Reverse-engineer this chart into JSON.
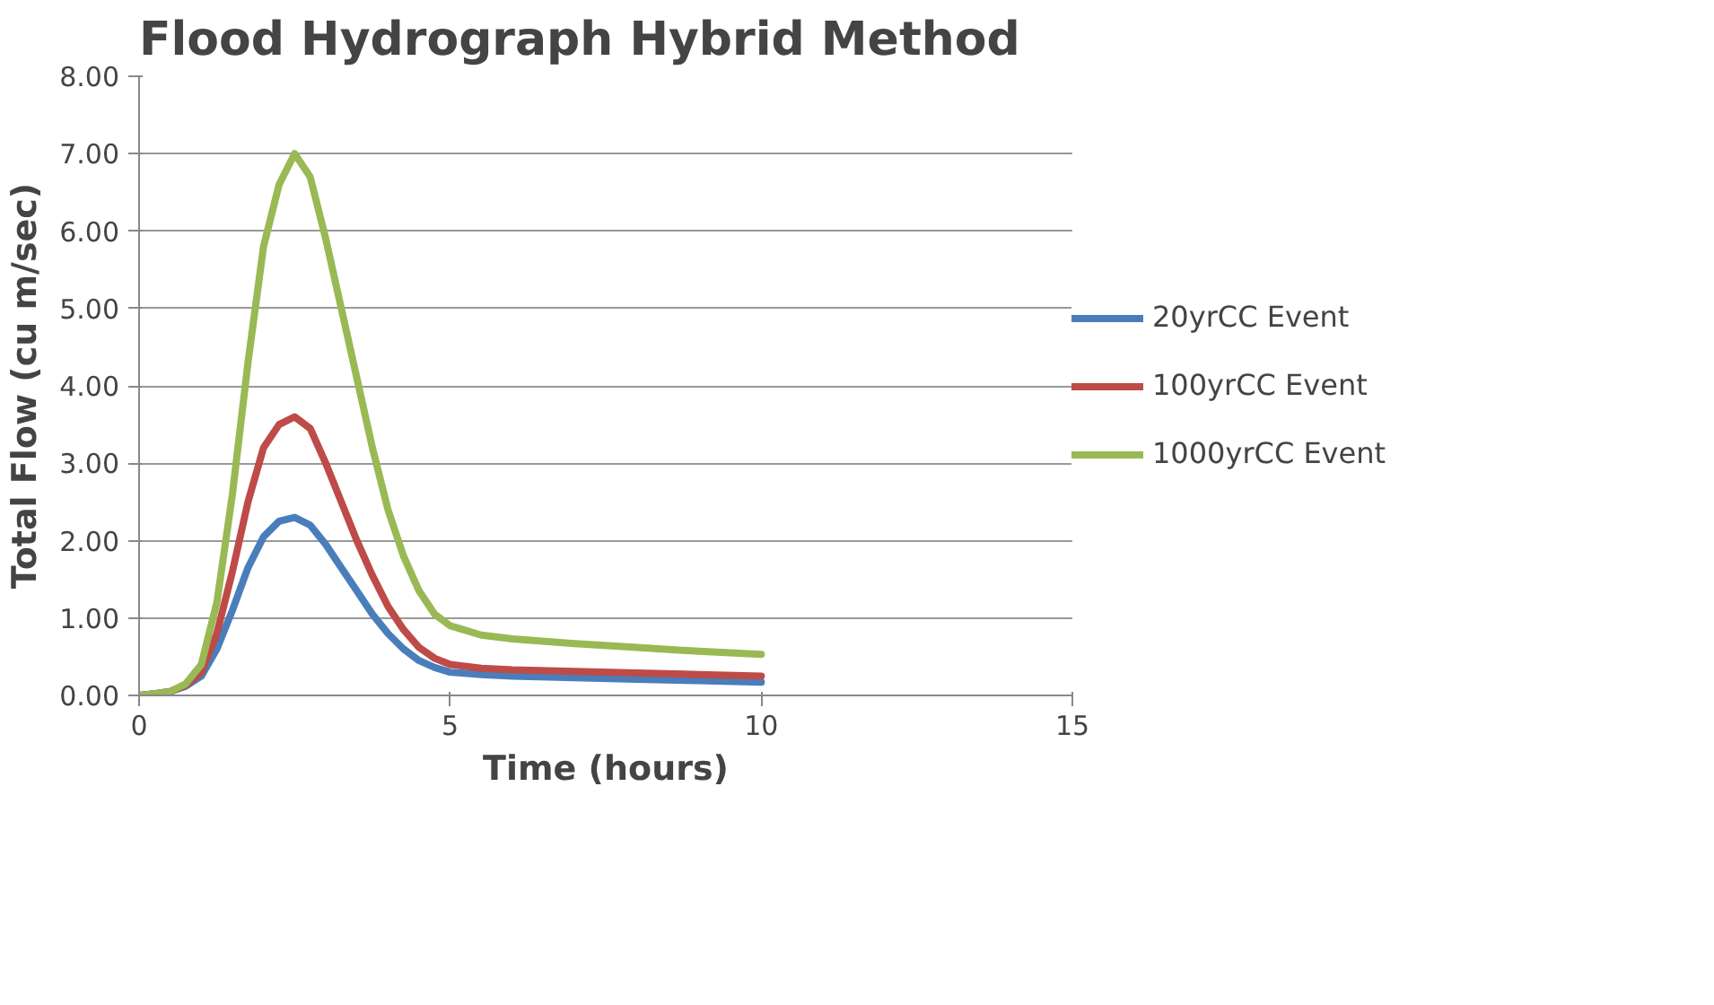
{
  "chart_data": {
    "type": "line",
    "title": "Flood Hydrograph Hybrid Method",
    "xlabel": "Time (hours)",
    "ylabel": "Total Flow (cu m/sec)",
    "x": [
      0,
      0.25,
      0.5,
      0.75,
      1,
      1.25,
      1.5,
      1.75,
      2,
      2.25,
      2.5,
      2.75,
      3,
      3.25,
      3.5,
      3.75,
      4,
      4.25,
      4.5,
      4.75,
      5,
      5.5,
      6,
      7,
      8,
      9,
      10
    ],
    "series": [
      {
        "name": "20yrCC Event",
        "color": "#4a7ebb",
        "values": [
          0,
          0.02,
          0.05,
          0.12,
          0.25,
          0.6,
          1.1,
          1.65,
          2.05,
          2.25,
          2.3,
          2.2,
          1.95,
          1.65,
          1.35,
          1.05,
          0.8,
          0.6,
          0.45,
          0.36,
          0.3,
          0.27,
          0.25,
          0.23,
          0.21,
          0.19,
          0.17
        ]
      },
      {
        "name": "100yrCC Event",
        "color": "#be4b48",
        "values": [
          0,
          0.02,
          0.05,
          0.13,
          0.3,
          0.8,
          1.6,
          2.5,
          3.2,
          3.5,
          3.6,
          3.45,
          3.0,
          2.5,
          2.0,
          1.55,
          1.15,
          0.85,
          0.62,
          0.48,
          0.4,
          0.35,
          0.33,
          0.31,
          0.29,
          0.27,
          0.25
        ]
      },
      {
        "name": "1000yrCC Event",
        "color": "#98b954",
        "values": [
          0,
          0.02,
          0.05,
          0.15,
          0.4,
          1.2,
          2.6,
          4.3,
          5.8,
          6.6,
          7.0,
          6.7,
          5.9,
          5.0,
          4.1,
          3.2,
          2.4,
          1.8,
          1.35,
          1.05,
          0.9,
          0.78,
          0.73,
          0.67,
          0.62,
          0.57,
          0.53
        ]
      }
    ],
    "xlim": [
      0,
      15
    ],
    "xticks": [
      0,
      5,
      10,
      15
    ],
    "ylim": [
      0,
      8
    ],
    "yticks": [
      {
        "value": 0,
        "label": "0.00"
      },
      {
        "value": 1,
        "label": "1.00"
      },
      {
        "value": 2,
        "label": "2.00"
      },
      {
        "value": 3,
        "label": "3.00"
      },
      {
        "value": 4,
        "label": "4.00"
      },
      {
        "value": 5,
        "label": "5.00"
      },
      {
        "value": 6,
        "label": "6.00"
      },
      {
        "value": 7,
        "label": "7.00"
      },
      {
        "value": 8,
        "label": "8.00"
      }
    ],
    "grid": "y",
    "legend": "right",
    "marker": "none",
    "line_style": "solid"
  }
}
